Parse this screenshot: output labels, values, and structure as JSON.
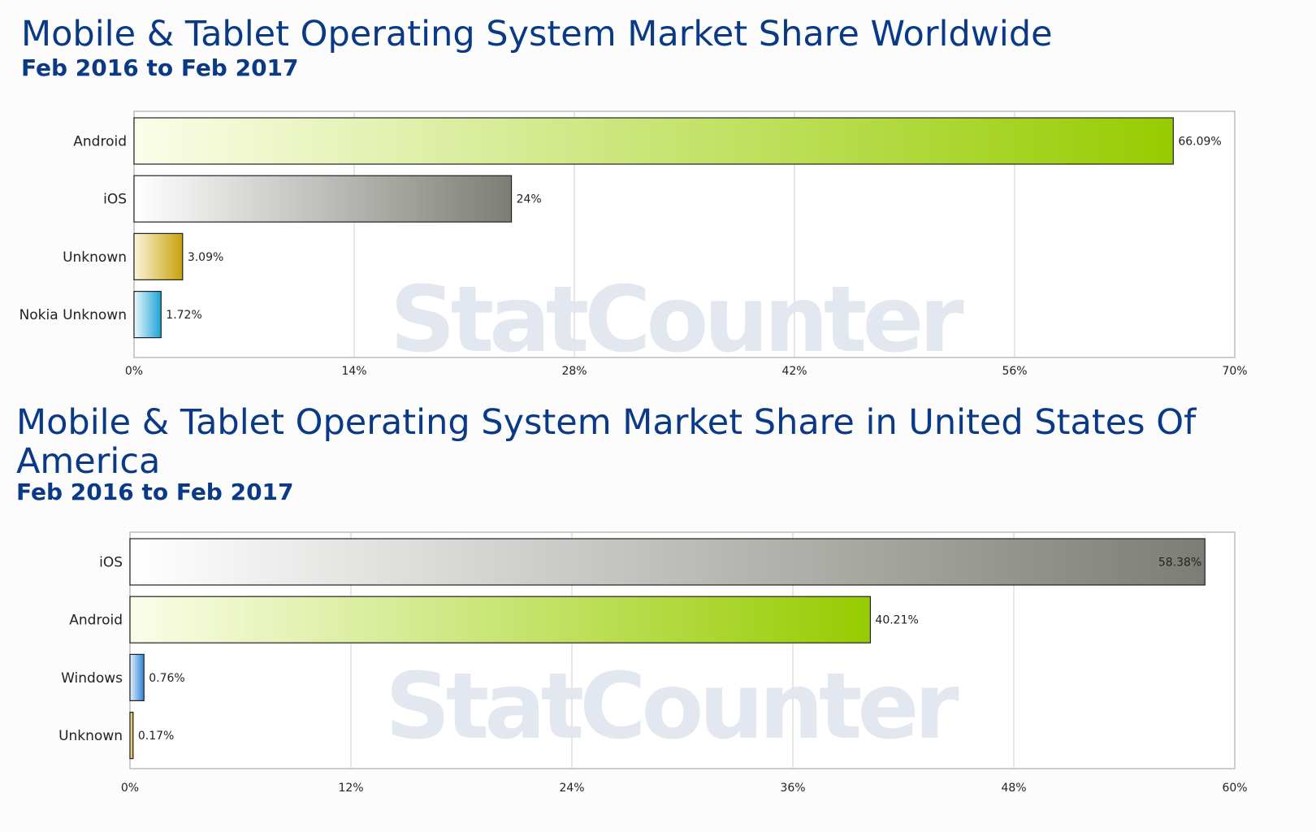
{
  "watermark_text": "StatCounter",
  "colors": {
    "title": "#0a3a86",
    "grid": "#cccccc",
    "axis": "#bbbbbb",
    "bar_border": "#222222"
  },
  "charts": [
    {
      "title": "Mobile & Tablet Operating System Market Share Worldwide",
      "subtitle": "Feb 2016 to Feb 2017"
    },
    {
      "title_line1": "Mobile & Tablet Operating System Market Share in United States Of",
      "title_line2": "America",
      "subtitle": "Feb 2016 to Feb 2017"
    }
  ],
  "chart_data": [
    {
      "type": "bar",
      "orientation": "horizontal",
      "title": "Mobile & Tablet Operating System Market Share Worldwide",
      "subtitle": "Feb 2016 to Feb 2017",
      "categories": [
        "Android",
        "iOS",
        "Unknown",
        "Nokia Unknown"
      ],
      "values": [
        66.09,
        24,
        3.09,
        1.72
      ],
      "value_labels": [
        "66.09%",
        "24%",
        "3.09%",
        "1.72%"
      ],
      "xlim": [
        0,
        70
      ],
      "ticks": [
        0,
        14,
        28,
        42,
        56,
        70
      ],
      "tick_labels": [
        "0%",
        "14%",
        "28%",
        "42%",
        "56%",
        "70%"
      ],
      "grid": true,
      "legend": "none",
      "bar_colors": [
        {
          "from": "#fbfde9",
          "to": "#96cc00"
        },
        {
          "from": "#ffffff",
          "to": "#7c7e75"
        },
        {
          "from": "#fbf5d9",
          "to": "#c9a10c"
        },
        {
          "from": "#ecf8fc",
          "to": "#1ba3d5"
        }
      ]
    },
    {
      "type": "bar",
      "orientation": "horizontal",
      "title": "Mobile & Tablet Operating System Market Share in United States Of America",
      "subtitle": "Feb 2016 to Feb 2017",
      "categories": [
        "iOS",
        "Android",
        "Windows",
        "Unknown"
      ],
      "values": [
        58.38,
        40.21,
        0.76,
        0.17
      ],
      "value_labels": [
        "58.38%",
        "40.21%",
        "0.76%",
        "0.17%"
      ],
      "xlim": [
        0,
        60
      ],
      "ticks": [
        0,
        12,
        24,
        36,
        48,
        60
      ],
      "tick_labels": [
        "0%",
        "12%",
        "24%",
        "36%",
        "48%",
        "60%"
      ],
      "grid": true,
      "legend": "none",
      "bar_colors": [
        {
          "from": "#ffffff",
          "to": "#7c7e75"
        },
        {
          "from": "#fbfde9",
          "to": "#96cc00"
        },
        {
          "from": "#e6f2fc",
          "to": "#2b85d6"
        },
        {
          "from": "#fbf5d9",
          "to": "#c9a10c"
        }
      ]
    }
  ]
}
